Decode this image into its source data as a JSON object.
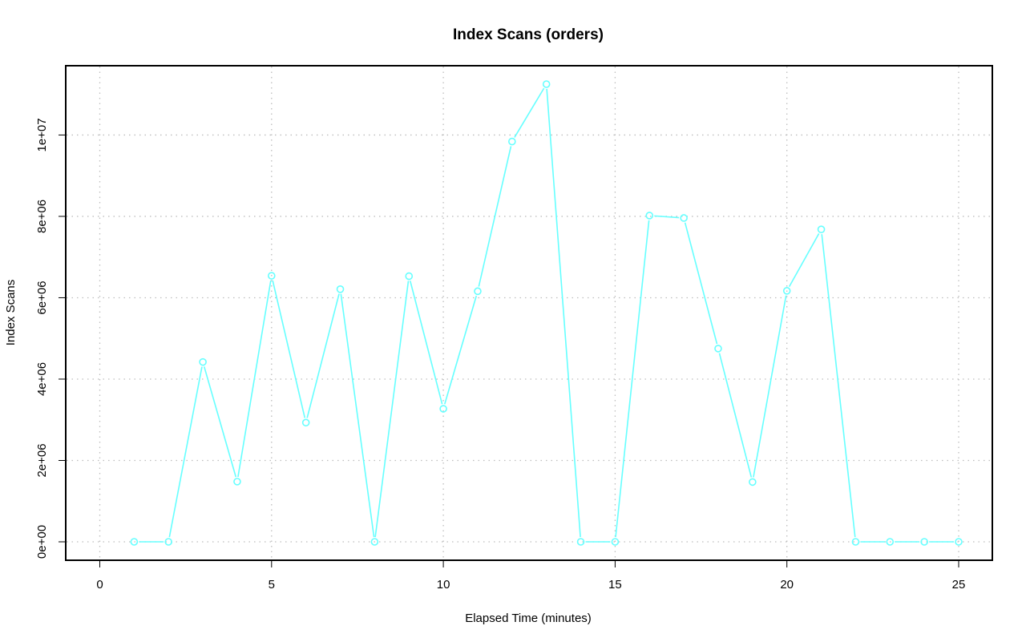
{
  "chart_data": {
    "type": "line",
    "title": "Index Scans (orders)",
    "xlabel": "Elapsed Time (minutes)",
    "ylabel": "Index Scans",
    "xlim": [
      0,
      25
    ],
    "ylim": [
      0,
      11250000
    ],
    "x_ticks": [
      0,
      5,
      10,
      15,
      20,
      25
    ],
    "x_tick_labels": [
      "0",
      "5",
      "10",
      "15",
      "20",
      "25"
    ],
    "y_ticks": [
      0,
      2000000,
      4000000,
      6000000,
      8000000,
      10000000
    ],
    "y_tick_labels": [
      "0e+00",
      "2e+06",
      "4e+06",
      "6e+06",
      "8e+06",
      "1e+07"
    ],
    "grid": true,
    "series": [
      {
        "color": "#66ffff",
        "marker": "open-circle",
        "x": [
          1,
          2,
          3,
          4,
          5,
          6,
          7,
          8,
          9,
          10,
          11,
          12,
          13,
          14,
          15,
          16,
          17,
          18,
          19,
          20,
          21,
          22,
          23,
          24,
          25
        ],
        "y": [
          0,
          0,
          4420000,
          1480000,
          6540000,
          2930000,
          6210000,
          0,
          6530000,
          3270000,
          6160000,
          9840000,
          11250000,
          0,
          0,
          8020000,
          7960000,
          4750000,
          1470000,
          6170000,
          7680000,
          0,
          0,
          0,
          0
        ]
      }
    ]
  }
}
